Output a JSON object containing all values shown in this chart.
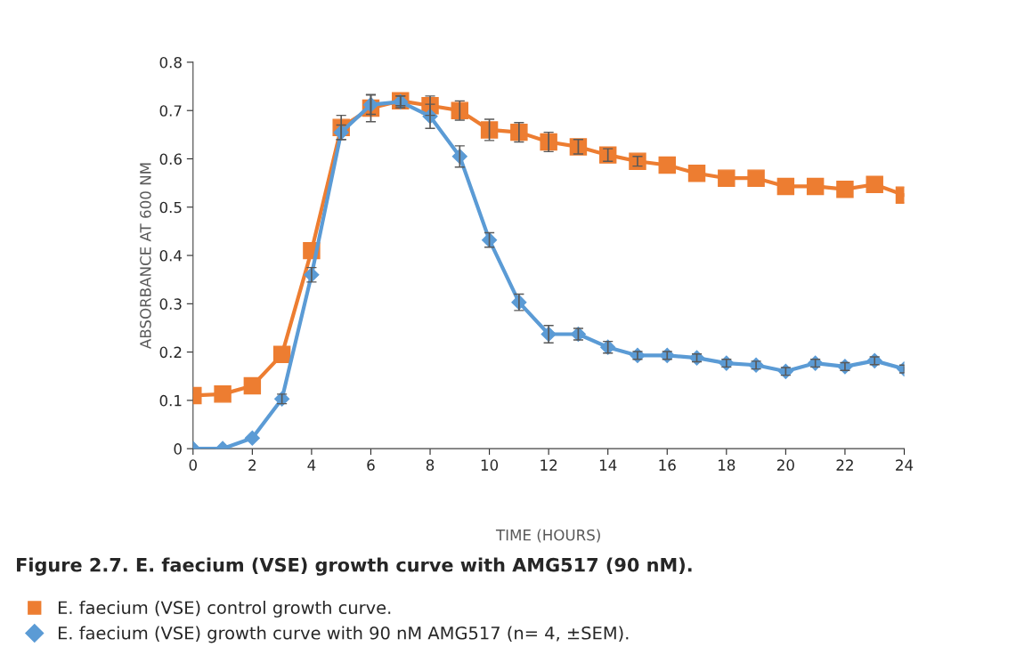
{
  "chart_data": {
    "type": "line",
    "title": "Figure 2.7. E. faecium (VSE) growth curve with AMG517 (90 nM).",
    "xlabel": "TIME (HOURS)",
    "ylabel": "ABSORBANCE AT 600 NM",
    "x": [
      0,
      1,
      2,
      3,
      4,
      5,
      6,
      7,
      8,
      9,
      10,
      11,
      12,
      13,
      14,
      15,
      16,
      17,
      18,
      19,
      20,
      21,
      22,
      23,
      24
    ],
    "series": [
      {
        "name": "E. faecium (VSE) control growth curve.",
        "color": "#ed7d31",
        "marker": "square",
        "values": [
          0.11,
          0.113,
          0.13,
          0.195,
          0.41,
          0.665,
          0.705,
          0.72,
          0.71,
          0.7,
          0.66,
          0.655,
          0.635,
          0.625,
          0.608,
          0.595,
          0.587,
          0.57,
          0.56,
          0.56,
          0.543,
          0.543,
          0.537,
          0.547,
          0.525
        ],
        "errors": [
          null,
          null,
          null,
          null,
          null,
          0.025,
          0.028,
          0.01,
          0.02,
          0.02,
          0.022,
          0.02,
          0.02,
          0.015,
          0.013,
          0.01,
          null,
          null,
          null,
          null,
          null,
          null,
          null,
          null,
          null
        ]
      },
      {
        "name": "E. faecium (VSE) growth curve with 90 nM AMG517 (n= 4, ±SEM).",
        "color": "#5b9bd5",
        "marker": "diamond",
        "values": [
          0,
          0,
          0.022,
          0.103,
          0.36,
          0.655,
          0.712,
          0.718,
          0.688,
          0.605,
          0.432,
          0.303,
          0.237,
          0.237,
          0.21,
          0.193,
          0.193,
          0.188,
          0.177,
          0.173,
          0.16,
          0.177,
          0.17,
          0.182,
          0.165
        ],
        "errors": [
          null,
          null,
          null,
          0.01,
          0.015,
          0.015,
          0.02,
          0.012,
          0.025,
          0.022,
          0.015,
          0.017,
          0.018,
          0.012,
          0.012,
          0.008,
          0.008,
          0.008,
          0.008,
          0.008,
          0.008,
          0.008,
          0.008,
          0.008,
          0.008
        ]
      }
    ],
    "xlim": [
      0,
      24
    ],
    "xticks": [
      0,
      2,
      4,
      6,
      8,
      10,
      12,
      14,
      16,
      18,
      20,
      22,
      24
    ],
    "ylim": [
      0,
      0.8
    ],
    "yticks": [
      0,
      0.1,
      0.2,
      0.3,
      0.4,
      0.5,
      0.6,
      0.7,
      0.8
    ],
    "grid": false,
    "legend": "bottom"
  }
}
